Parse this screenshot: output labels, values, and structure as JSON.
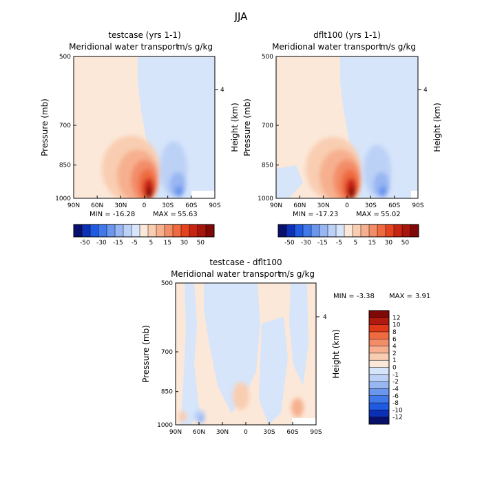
{
  "figure": {
    "title": "JJA",
    "min_label": "MIN =",
    "max_label": "MAX ="
  },
  "chart_data": [
    {
      "type": "heatmap",
      "title": "testcase (yrs 1-1)",
      "subtitle": "Meridional water transport",
      "units": "m/s g/kg",
      "x_ticks": [
        "90N",
        "60N",
        "30N",
        "0",
        "30S",
        "60S",
        "90S"
      ],
      "y_ticks": [
        "500",
        "700",
        "850",
        "1000"
      ],
      "ylabel": "Pressure (mb)",
      "right_label": "Height (km)",
      "right_tick": "4",
      "min": "-16.28",
      "max": "55.63",
      "peak": 55.63,
      "trough": -16.28
    },
    {
      "type": "heatmap",
      "title": "dflt100 (yrs 1-1)",
      "subtitle": "Meridional water transport",
      "units": "m/s g/kg",
      "x_ticks": [
        "90N",
        "60N",
        "30N",
        "0",
        "30S",
        "60S",
        "90S"
      ],
      "y_ticks": [
        "500",
        "700",
        "850",
        "1000"
      ],
      "ylabel": "Pressure (mb)",
      "right_label": "Height (km)",
      "right_tick": "4",
      "min": "-17.23",
      "max": "55.02",
      "peak": 55.02,
      "trough": -17.23
    },
    {
      "type": "heatmap",
      "title": "testcase - dflt100",
      "subtitle": "Meridional water transport",
      "units": "m/s g/kg",
      "x_ticks": [
        "90N",
        "60N",
        "30N",
        "0",
        "30S",
        "60S",
        "90S"
      ],
      "y_ticks": [
        "500",
        "700",
        "850",
        "1000"
      ],
      "ylabel": "Pressure (mb)",
      "right_label": "Height (km)",
      "right_tick": "4",
      "min": "-3.38",
      "max": "3.91"
    }
  ],
  "colorbar_top": {
    "labels": [
      "-50",
      "-30",
      "-15",
      "-5",
      "5",
      "15",
      "30",
      "50"
    ],
    "colors": [
      "#08106b",
      "#0b2fb5",
      "#1f5ae0",
      "#4279ea",
      "#6b96ee",
      "#98b6f2",
      "#bcd1f6",
      "#d6e5fa",
      "#fbe8d9",
      "#f9cdb1",
      "#f6b08f",
      "#f28d67",
      "#ef6a40",
      "#e5431f",
      "#c82412",
      "#a7150b",
      "#7e0906"
    ]
  },
  "colorbar_diff": {
    "labels": [
      "12",
      "10",
      "8",
      "6",
      "4",
      "2",
      "1",
      "0",
      "-1",
      "-2",
      "-4",
      "-6",
      "-8",
      "-10",
      "-12"
    ],
    "colors": [
      "#7e0906",
      "#b01a0e",
      "#e0391a",
      "#ef6a40",
      "#f28d67",
      "#f6b08f",
      "#f9cdb1",
      "#fbe8d9",
      "#d6e5fa",
      "#bcd1f6",
      "#98b6f2",
      "#6b96ee",
      "#4279ea",
      "#1f5ae0",
      "#0b2fb5",
      "#08106b"
    ]
  }
}
